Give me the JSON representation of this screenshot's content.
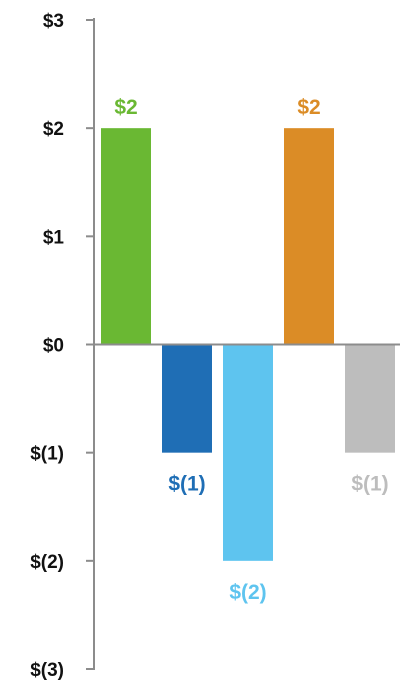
{
  "chart_data": {
    "type": "bar",
    "title": "",
    "xlabel": "",
    "ylabel": "",
    "ylim": [
      -3,
      3
    ],
    "y_ticks": [
      {
        "value": 3,
        "label": "$3"
      },
      {
        "value": 2,
        "label": "$2"
      },
      {
        "value": 1,
        "label": "$1"
      },
      {
        "value": 0,
        "label": "$0"
      },
      {
        "value": -1,
        "label": "$(1)"
      },
      {
        "value": -2,
        "label": "$(2)"
      },
      {
        "value": -3,
        "label": "$(3)"
      }
    ],
    "grid": false,
    "legend": "none",
    "bars": [
      {
        "value": 2,
        "label": "$2",
        "color": "#6ab833"
      },
      {
        "value": -1,
        "label": "$(1)",
        "color": "#1f6eb5"
      },
      {
        "value": -2,
        "label": "$(2)",
        "color": "#5ec4ef"
      },
      {
        "value": 2,
        "label": "$2",
        "color": "#db8c26"
      },
      {
        "value": -1,
        "label": "$(1)",
        "color": "#bdbdbd"
      }
    ]
  }
}
